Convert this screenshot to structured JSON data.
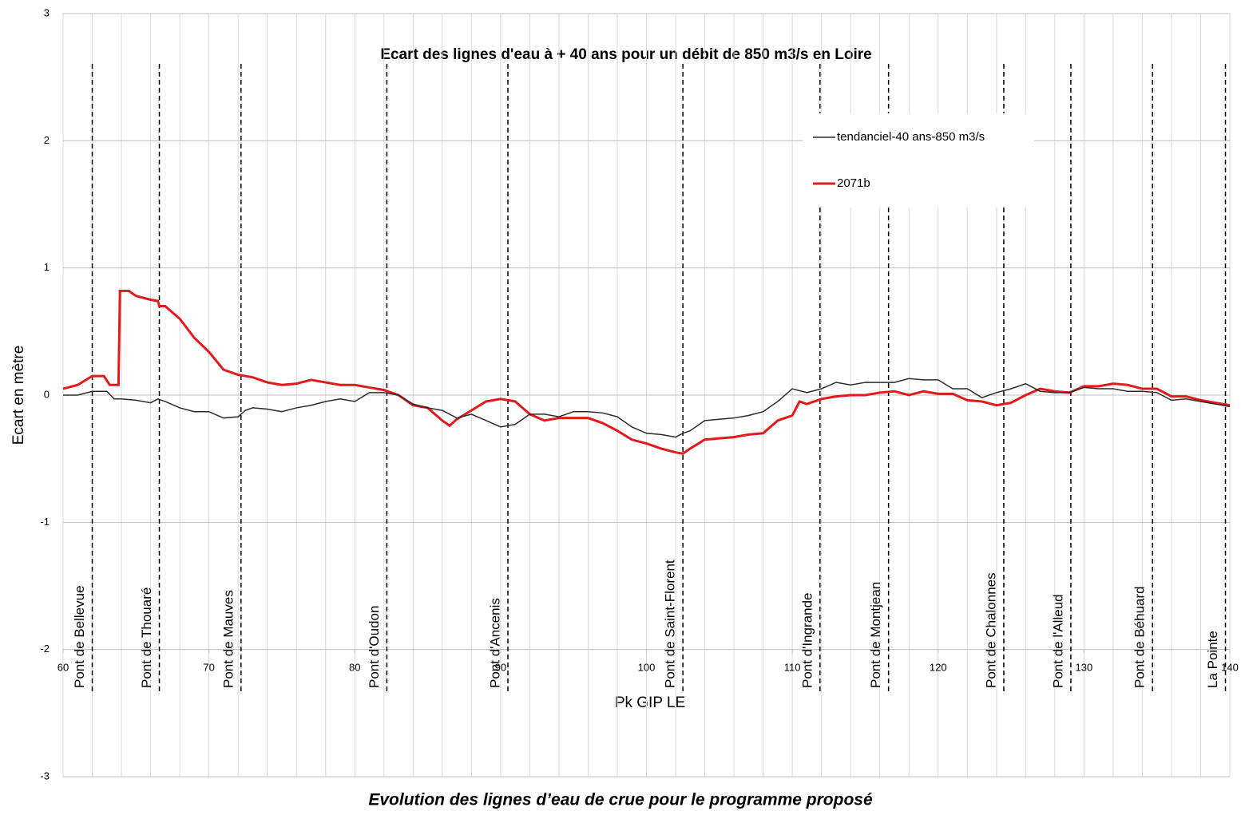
{
  "chart_data": {
    "type": "line",
    "title": "Ecart des lignes d'eau à + 40 ans pour un débit de 850 m3/s en Loire",
    "x_label": "Pk GIP LE",
    "y_label": "Ecart en mètre",
    "xlim": [
      60,
      140
    ],
    "xticks": [
      60,
      70,
      80,
      90,
      100,
      110,
      120,
      130,
      140
    ],
    "ylim": [
      -3,
      3
    ],
    "yticks": [
      -3,
      -2,
      -1,
      0,
      1,
      2,
      3
    ],
    "grid": true,
    "x_minor_grid_step": 2,
    "series": [
      {
        "name": "tendanciel-40 ans-850 m3/s",
        "color": "#2b2b2b",
        "x": [
          60,
          61,
          62,
          63,
          63.5,
          64,
          65,
          66,
          66.5,
          67,
          68,
          69,
          70,
          71,
          72,
          72.5,
          73,
          74,
          75,
          76,
          77,
          78,
          79,
          80,
          81,
          82,
          83,
          84,
          85,
          86,
          87,
          88,
          89,
          90,
          91,
          92,
          93,
          94,
          95,
          96,
          97,
          98,
          99,
          100,
          101,
          102,
          102.5,
          103,
          104,
          105,
          106,
          107,
          108,
          109,
          110,
          111,
          112,
          113,
          114,
          115,
          116,
          117,
          118,
          119,
          120,
          121,
          122,
          123,
          124,
          125,
          126,
          127,
          128,
          129,
          130,
          131,
          132,
          133,
          134,
          135,
          136,
          137,
          138,
          139,
          140
        ],
        "values": [
          0,
          0,
          0.03,
          0.03,
          -0.03,
          -0.03,
          -0.04,
          -0.06,
          -0.03,
          -0.05,
          -0.1,
          -0.13,
          -0.13,
          -0.18,
          -0.17,
          -0.12,
          -0.1,
          -0.11,
          -0.13,
          -0.1,
          -0.08,
          -0.05,
          -0.03,
          -0.05,
          0.02,
          0.02,
          0,
          -0.07,
          -0.1,
          -0.12,
          -0.18,
          -0.15,
          -0.2,
          -0.25,
          -0.23,
          -0.15,
          -0.15,
          -0.17,
          -0.13,
          -0.13,
          -0.14,
          -0.17,
          -0.25,
          -0.3,
          -0.31,
          -0.33,
          -0.3,
          -0.28,
          -0.2,
          -0.19,
          -0.18,
          -0.16,
          -0.13,
          -0.05,
          0.05,
          0.02,
          0.05,
          0.1,
          0.08,
          0.1,
          0.1,
          0.1,
          0.13,
          0.12,
          0.12,
          0.05,
          0.05,
          -0.02,
          0.02,
          0.05,
          0.09,
          0.03,
          0.02,
          0.02,
          0.06,
          0.05,
          0.05,
          0.03,
          0.03,
          0.02,
          -0.04,
          -0.03,
          -0.05,
          -0.07,
          -0.09
        ]
      },
      {
        "name": "2071b",
        "color": "#e31a1c",
        "x": [
          60,
          61,
          62,
          62.8,
          63.2,
          63.8,
          63.9,
          64.5,
          65,
          66,
          66.5,
          66.6,
          67,
          68,
          69,
          70,
          71,
          72,
          73,
          74,
          75,
          76,
          77,
          78,
          79,
          80,
          81,
          82,
          83,
          84,
          85,
          86,
          86.5,
          87,
          88,
          89,
          90,
          91,
          92,
          93,
          94,
          95,
          96,
          97,
          98,
          99,
          100,
          101,
          102,
          102.5,
          103,
          104,
          105,
          106,
          107,
          108,
          109,
          110,
          110.5,
          111,
          112,
          113,
          114,
          115,
          116,
          117,
          118,
          119,
          120,
          121,
          122,
          123,
          124,
          125,
          126,
          127,
          128,
          129,
          130,
          131,
          132,
          133,
          134,
          135,
          136,
          137,
          138,
          139,
          140
        ],
        "values": [
          0.05,
          0.08,
          0.15,
          0.15,
          0.08,
          0.08,
          0.82,
          0.82,
          0.78,
          0.75,
          0.74,
          0.7,
          0.7,
          0.6,
          0.45,
          0.34,
          0.2,
          0.16,
          0.14,
          0.1,
          0.08,
          0.09,
          0.12,
          0.1,
          0.08,
          0.08,
          0.06,
          0.04,
          0,
          -0.08,
          -0.1,
          -0.2,
          -0.24,
          -0.19,
          -0.12,
          -0.05,
          -0.03,
          -0.05,
          -0.15,
          -0.2,
          -0.18,
          -0.18,
          -0.18,
          -0.22,
          -0.28,
          -0.35,
          -0.38,
          -0.42,
          -0.45,
          -0.46,
          -0.42,
          -0.35,
          -0.34,
          -0.33,
          -0.31,
          -0.3,
          -0.2,
          -0.16,
          -0.05,
          -0.07,
          -0.03,
          -0.01,
          0,
          0,
          0.02,
          0.03,
          0,
          0.03,
          0.01,
          0.01,
          -0.04,
          -0.05,
          -0.08,
          -0.06,
          0,
          0.05,
          0.03,
          0.02,
          0.07,
          0.07,
          0.09,
          0.08,
          0.05,
          0.05,
          -0.01,
          -0.01,
          -0.04,
          -0.06,
          -0.08
        ]
      }
    ],
    "annotations": [
      {
        "label": "Pont de Bellevue",
        "x": 62
      },
      {
        "label": "Pont de Thouaré",
        "x": 66.6
      },
      {
        "label": "Pont de Mauves",
        "x": 72.2
      },
      {
        "label": "Pont d'Oudon",
        "x": 82.2
      },
      {
        "label": "Pont d'Ancenis",
        "x": 90.5
      },
      {
        "label": "Pont de Saint-Florent",
        "x": 102.5
      },
      {
        "label": "Pont d'Ingrande",
        "x": 111.9
      },
      {
        "label": "Pont de Montjean",
        "x": 116.6
      },
      {
        "label": "Pont de Chalonnes",
        "x": 124.5
      },
      {
        "label": "Pont de l'Alleud",
        "x": 129.1
      },
      {
        "label": "Pont de Béhuard",
        "x": 134.7
      },
      {
        "label": "La Pointe",
        "x": 139.7
      }
    ]
  },
  "caption": "Evolution des lignes d’eau de crue pour le programme proposé"
}
